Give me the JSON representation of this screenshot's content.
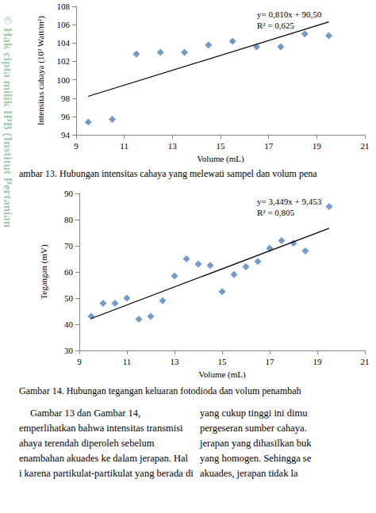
{
  "chart_data": [
    {
      "type": "scatter",
      "ylabel": "Intensitas cahaya (10³ Watt/m²)",
      "xlabel": "Volume (mL)",
      "x": [
        9.5,
        10.5,
        11.5,
        12.5,
        13.5,
        14.5,
        15.5,
        16.5,
        17.5,
        18.5,
        19.5
      ],
      "values": [
        95.4,
        95.7,
        102.8,
        103.0,
        103.0,
        103.8,
        104.2,
        103.6,
        103.6,
        105.0,
        104.8
      ],
      "color": "#4f81bd",
      "marker": "diamond",
      "trendline": {
        "x": [
          9.5,
          19.5
        ],
        "values": [
          98.2,
          106.3
        ],
        "color": "#000000"
      },
      "annotations": [
        "y= 0,810x + 90,50",
        "R² = 0,625"
      ],
      "xlim": [
        9,
        21
      ],
      "xticks": [
        9,
        11,
        13,
        15,
        17,
        19,
        21
      ],
      "ylim": [
        94,
        108
      ],
      "yticks": [
        94,
        96,
        98,
        100,
        102,
        104,
        106,
        108
      ],
      "grid": false
    },
    {
      "type": "scatter",
      "ylabel": "Tegangan (mV)",
      "xlabel": "Volume (mL)",
      "x": [
        9.5,
        10,
        10.5,
        11,
        11.5,
        12,
        12.5,
        13,
        13.5,
        14,
        14.5,
        15,
        15.5,
        16,
        16.5,
        17,
        17.5,
        18,
        18.5,
        19.5
      ],
      "values": [
        43,
        48,
        48,
        50,
        42,
        43,
        49,
        58.5,
        65,
        63,
        62.5,
        52.5,
        59,
        62,
        64,
        69,
        72,
        71,
        68,
        85
      ],
      "color": "#4f81bd",
      "marker": "diamond",
      "trendline": {
        "x": [
          9.5,
          19.5
        ],
        "values": [
          42.2,
          76.7
        ],
        "color": "#000000"
      },
      "annotations": [
        "y= 3,449x + 9,453",
        "R² = 0,805"
      ],
      "xlim": [
        9,
        21
      ],
      "xticks": [
        9,
        11,
        13,
        15,
        17,
        19,
        21
      ],
      "ylim": [
        30,
        90
      ],
      "yticks": [
        30,
        40,
        50,
        60,
        70,
        80,
        90
      ],
      "grid": false
    }
  ],
  "captions": [
    "ambar 13. Hubungan intensitas cahaya yang melewati sampel dan volum pena",
    "Gambar 14. Hubungan tegangan keluaran fotodioda dan volum penambah"
  ],
  "body": {
    "left": [
      "Gambar 13 dan Gambar 14,",
      "emperlihatkan bahwa intensitas transmisi",
      "ahaya terendah diperoleh sebelum",
      "enambahan akuades ke dalam jerapan. Hal",
      "i karena partikulat-partikulat yang berada di"
    ],
    "right": [
      "yang cukup tinggi ini dimu",
      "pergeseran sumber cahaya.",
      "jerapan yang dihasilkan buk",
      "yang homogen. Sehingga se",
      "akuades, jerapan tidak la"
    ]
  },
  "watermark": "© Hak cipta milik IPB (Institut Pertanian"
}
